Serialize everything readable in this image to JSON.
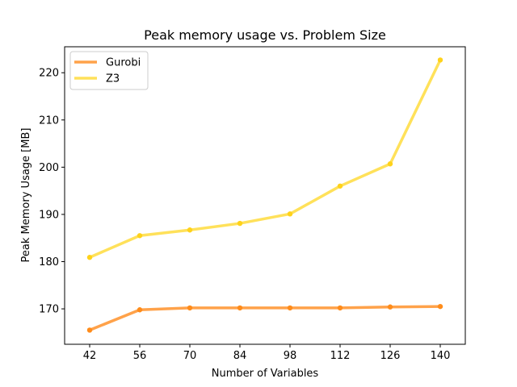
{
  "chart_data": {
    "type": "line",
    "title": "Peak memory usage vs. Problem Size",
    "xlabel": "Number of Variables",
    "ylabel": "Peak Memory Usage [MB]",
    "x": [
      42,
      56,
      70,
      84,
      98,
      112,
      126,
      140
    ],
    "xlim": [
      35,
      147
    ],
    "ylim": [
      162.5,
      225.5
    ],
    "yticks": [
      170,
      180,
      190,
      200,
      210,
      220
    ],
    "series": [
      {
        "name": "Gurobi",
        "color": "#ffa24a",
        "marker_color": "#ff8c1a",
        "values": [
          165.5,
          169.8,
          170.2,
          170.2,
          170.2,
          170.2,
          170.4,
          170.5
        ]
      },
      {
        "name": "Z3",
        "color": "#ffe15a",
        "marker_color": "#ffd21a",
        "values": [
          180.9,
          185.5,
          186.7,
          188.1,
          190.1,
          196.0,
          200.7,
          222.7
        ]
      }
    ],
    "grid": false,
    "legend": "upper-left"
  }
}
